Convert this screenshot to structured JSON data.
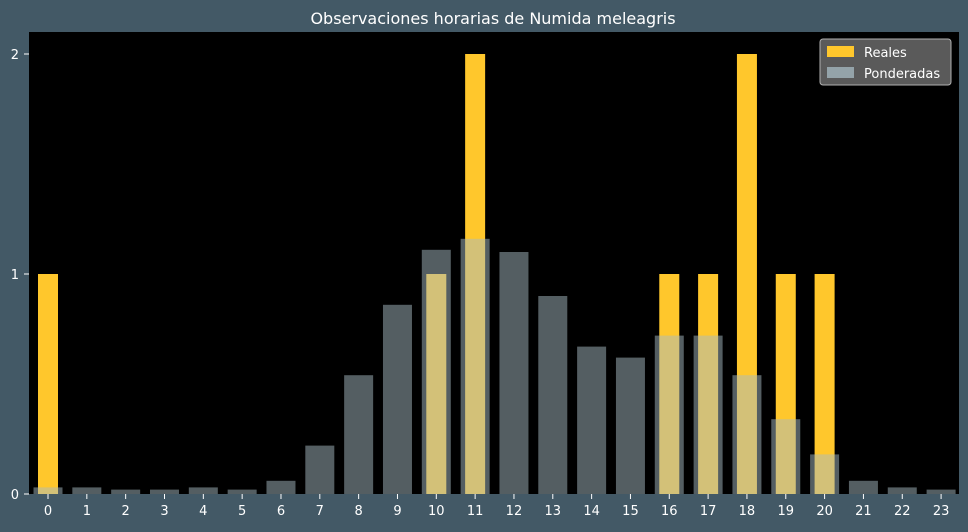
{
  "colors": {
    "page_background": "#435966",
    "plot_background": "#000000",
    "real_bar": "#ffc72c",
    "weighted_bar": "#a8bcc4",
    "weighted_opacity": 0.5,
    "text": "#ffffff",
    "legend_bg": "#5a5a5a",
    "legend_border": "#b0b0b0"
  },
  "chart_data": {
    "type": "bar",
    "title": "Observaciones horarias de Numida meleagris",
    "xlabel": "",
    "ylabel": "",
    "categories": [
      "0",
      "1",
      "2",
      "3",
      "4",
      "5",
      "6",
      "7",
      "8",
      "9",
      "10",
      "11",
      "12",
      "13",
      "14",
      "15",
      "16",
      "17",
      "18",
      "19",
      "20",
      "21",
      "22",
      "23"
    ],
    "series": [
      {
        "name": "Reales",
        "values": [
          1,
          0,
          0,
          0,
          0,
          0,
          0,
          0,
          0,
          0,
          1,
          2,
          0,
          0,
          0,
          0,
          1,
          1,
          2,
          1,
          1,
          0,
          0,
          0
        ]
      },
      {
        "name": "Ponderadas",
        "values": [
          0.03,
          0.03,
          0.02,
          0.02,
          0.03,
          0.02,
          0.06,
          0.22,
          0.54,
          0.86,
          1.11,
          1.16,
          1.1,
          0.9,
          0.67,
          0.62,
          0.72,
          0.72,
          0.54,
          0.34,
          0.18,
          0.06,
          0.03,
          0.02
        ]
      }
    ],
    "yticks": [
      0,
      1,
      2
    ],
    "ylim": [
      0,
      2.1
    ],
    "legend_position": "top-right",
    "grid": false
  }
}
